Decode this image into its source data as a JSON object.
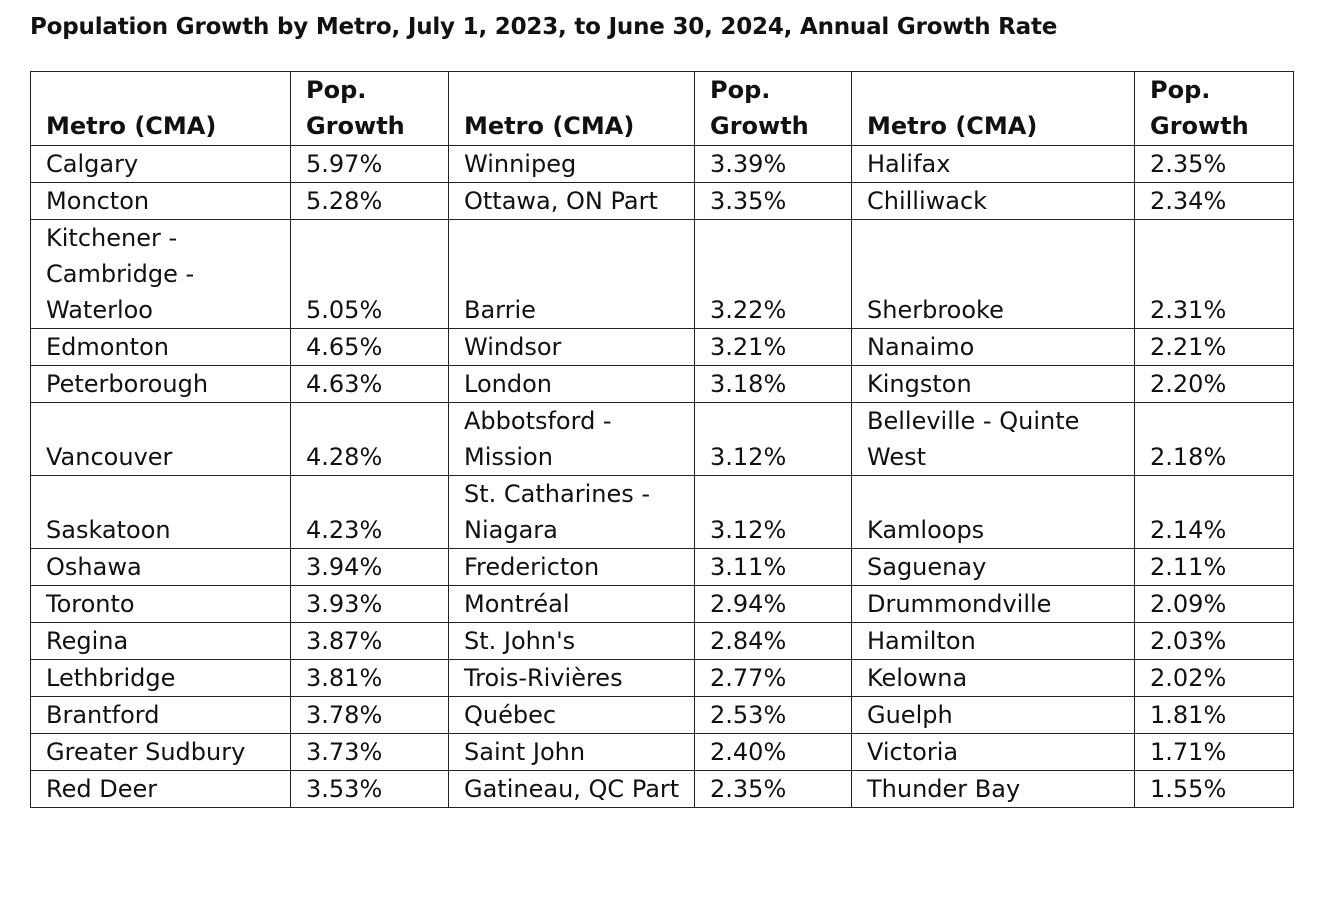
{
  "title": "Population Growth by Metro, July 1, 2023, to June 30, 2024, Annual Growth Rate",
  "headers": {
    "metro": "Metro (CMA)",
    "growth_line1": "Pop.",
    "growth_line2": "Growth"
  },
  "rows": [
    [
      {
        "metro": "Calgary",
        "growth": "5.97%"
      },
      {
        "metro": "Winnipeg",
        "growth": "3.39%"
      },
      {
        "metro": "Halifax",
        "growth": "2.35%"
      }
    ],
    [
      {
        "metro": "Moncton",
        "growth": "5.28%"
      },
      {
        "metro": "Ottawa, ON Part",
        "growth": "3.35%"
      },
      {
        "metro": "Chilliwack",
        "growth": "2.34%"
      }
    ],
    [
      {
        "metro": "Kitchener - Cambridge - Waterloo",
        "growth": "5.05%"
      },
      {
        "metro": "Barrie",
        "growth": "3.22%"
      },
      {
        "metro": "Sherbrooke",
        "growth": "2.31%"
      }
    ],
    [
      {
        "metro": "Edmonton",
        "growth": "4.65%"
      },
      {
        "metro": "Windsor",
        "growth": "3.21%"
      },
      {
        "metro": "Nanaimo",
        "growth": "2.21%"
      }
    ],
    [
      {
        "metro": "Peterborough",
        "growth": "4.63%"
      },
      {
        "metro": "London",
        "growth": "3.18%"
      },
      {
        "metro": "Kingston",
        "growth": "2.20%"
      }
    ],
    [
      {
        "metro": "Vancouver",
        "growth": "4.28%"
      },
      {
        "metro": "Abbotsford - Mission",
        "growth": "3.12%"
      },
      {
        "metro": "Belleville - Quinte West",
        "growth": "2.18%"
      }
    ],
    [
      {
        "metro": "Saskatoon",
        "growth": "4.23%"
      },
      {
        "metro": "St. Catharines - Niagara",
        "growth": "3.12%"
      },
      {
        "metro": "Kamloops",
        "growth": "2.14%"
      }
    ],
    [
      {
        "metro": "Oshawa",
        "growth": "3.94%"
      },
      {
        "metro": "Fredericton",
        "growth": "3.11%"
      },
      {
        "metro": "Saguenay",
        "growth": "2.11%"
      }
    ],
    [
      {
        "metro": "Toronto",
        "growth": "3.93%"
      },
      {
        "metro": "Montréal",
        "growth": "2.94%"
      },
      {
        "metro": "Drummondville",
        "growth": "2.09%"
      }
    ],
    [
      {
        "metro": "Regina",
        "growth": "3.87%"
      },
      {
        "metro": "St. John's",
        "growth": "2.84%"
      },
      {
        "metro": "Hamilton",
        "growth": "2.03%"
      }
    ],
    [
      {
        "metro": "Lethbridge",
        "growth": "3.81%"
      },
      {
        "metro": "Trois-Rivières",
        "growth": "2.77%"
      },
      {
        "metro": "Kelowna",
        "growth": "2.02%"
      }
    ],
    [
      {
        "metro": "Brantford",
        "growth": "3.78%"
      },
      {
        "metro": "Québec",
        "growth": "2.53%"
      },
      {
        "metro": "Guelph",
        "growth": "1.81%"
      }
    ],
    [
      {
        "metro": "Greater Sudbury",
        "growth": "3.73%"
      },
      {
        "metro": "Saint John",
        "growth": "2.40%"
      },
      {
        "metro": "Victoria",
        "growth": "1.71%"
      }
    ],
    [
      {
        "metro": "Red Deer",
        "growth": "3.53%"
      },
      {
        "metro": "Gatineau, QC Part",
        "growth": "2.35%"
      },
      {
        "metro": "Thunder Bay",
        "growth": "1.55%"
      }
    ]
  ]
}
